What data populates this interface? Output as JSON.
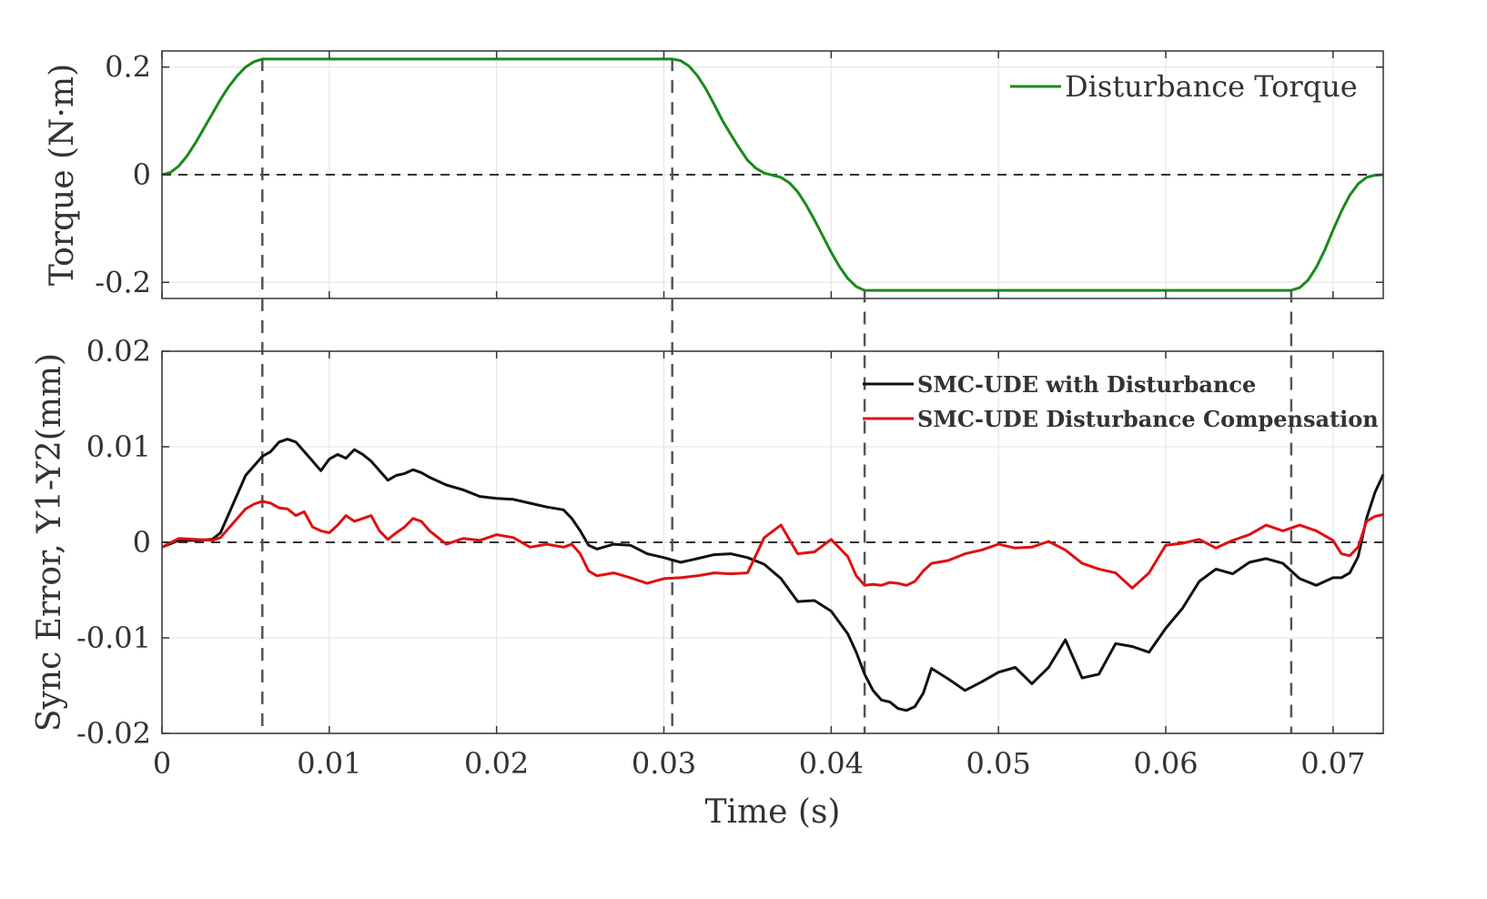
{
  "chart_data": [
    {
      "type": "line",
      "ylabel": "Torque (N·m)",
      "ylim": [
        -0.23,
        0.23
      ],
      "xlim": [
        0,
        0.073
      ],
      "yticks": [
        -0.2,
        0,
        0.2
      ],
      "ytick_labels": [
        "-0.2",
        "0",
        "0.2"
      ],
      "grid": true,
      "legend_position": "top-right",
      "series": [
        {
          "name": "Disturbance Torque",
          "color": "#1a8a1a",
          "x": [
            0,
            0.0005,
            0.001,
            0.0015,
            0.002,
            0.0025,
            0.003,
            0.0035,
            0.004,
            0.0045,
            0.005,
            0.0055,
            0.006,
            0.01,
            0.02,
            0.0305,
            0.031,
            0.0315,
            0.032,
            0.0325,
            0.033,
            0.0335,
            0.034,
            0.0345,
            0.035,
            0.0355,
            0.036,
            0.0365,
            0.037,
            0.0375,
            0.038,
            0.0385,
            0.039,
            0.0395,
            0.04,
            0.0405,
            0.041,
            0.0415,
            0.042,
            0.05,
            0.06,
            0.0675,
            0.068,
            0.0685,
            0.069,
            0.0695,
            0.07,
            0.0705,
            0.071,
            0.0715,
            0.072,
            0.0725,
            0.073
          ],
          "y": [
            0,
            0.004,
            0.016,
            0.035,
            0.059,
            0.086,
            0.113,
            0.14,
            0.164,
            0.184,
            0.2,
            0.21,
            0.215,
            0.215,
            0.215,
            0.215,
            0.212,
            0.202,
            0.184,
            0.16,
            0.131,
            0.101,
            0.075,
            0.05,
            0.027,
            0.012,
            0.003,
            -0.001,
            -0.005,
            -0.015,
            -0.032,
            -0.056,
            -0.084,
            -0.114,
            -0.144,
            -0.171,
            -0.193,
            -0.208,
            -0.215,
            -0.215,
            -0.215,
            -0.215,
            -0.21,
            -0.196,
            -0.172,
            -0.14,
            -0.103,
            -0.068,
            -0.038,
            -0.017,
            -0.005,
            -0.001,
            0
          ]
        }
      ],
      "reference_lines": {
        "horizontal_zero": true,
        "vertical_x": [
          0.006,
          0.0305
        ]
      }
    },
    {
      "type": "line",
      "xlabel": "Time (s)",
      "ylabel": "Sync Error, Y1-Y2(mm)",
      "ylim": [
        -0.02,
        0.02
      ],
      "xlim": [
        0,
        0.073
      ],
      "yticks": [
        -0.02,
        -0.01,
        0,
        0.01,
        0.02
      ],
      "ytick_labels": [
        "-0.02",
        "-0.01",
        "0",
        "0.01",
        "0.02"
      ],
      "xticks": [
        0,
        0.01,
        0.02,
        0.03,
        0.04,
        0.05,
        0.06,
        0.07
      ],
      "xtick_labels": [
        "0",
        "0.01",
        "0.02",
        "0.03",
        "0.04",
        "0.05",
        "0.06",
        "0.07"
      ],
      "grid": true,
      "legend_position": "top-right",
      "series": [
        {
          "name": "SMC-UDE with Disturbance",
          "color": "#111111",
          "x": [
            0,
            0.001,
            0.002,
            0.003,
            0.0035,
            0.004,
            0.0045,
            0.005,
            0.0055,
            0.006,
            0.0065,
            0.007,
            0.0075,
            0.008,
            0.0085,
            0.009,
            0.0095,
            0.01,
            0.0105,
            0.011,
            0.0115,
            0.012,
            0.0125,
            0.013,
            0.0135,
            0.014,
            0.0145,
            0.015,
            0.0155,
            0.016,
            0.017,
            0.018,
            0.019,
            0.02,
            0.021,
            0.022,
            0.023,
            0.024,
            0.0245,
            0.025,
            0.0255,
            0.026,
            0.027,
            0.028,
            0.029,
            0.03,
            0.031,
            0.032,
            0.033,
            0.034,
            0.035,
            0.036,
            0.037,
            0.038,
            0.039,
            0.04,
            0.041,
            0.0415,
            0.042,
            0.0425,
            0.043,
            0.0435,
            0.044,
            0.0445,
            0.045,
            0.0455,
            0.046,
            0.047,
            0.048,
            0.049,
            0.05,
            0.051,
            0.052,
            0.053,
            0.054,
            0.055,
            0.056,
            0.057,
            0.058,
            0.059,
            0.06,
            0.061,
            0.062,
            0.063,
            0.064,
            0.065,
            0.066,
            0.067,
            0.068,
            0.069,
            0.07,
            0.0705,
            0.071,
            0.0715,
            0.072,
            0.0725,
            0.073
          ],
          "y": [
            -0.0005,
            0.0002,
            0.0002,
            0.0003,
            0.001,
            0.003,
            0.005,
            0.007,
            0.008,
            0.009,
            0.0095,
            0.0105,
            0.0108,
            0.0105,
            0.0095,
            0.0085,
            0.0075,
            0.0087,
            0.0092,
            0.0088,
            0.0097,
            0.0092,
            0.0085,
            0.0075,
            0.0065,
            0.007,
            0.0072,
            0.0076,
            0.0073,
            0.0068,
            0.006,
            0.0055,
            0.0048,
            0.0046,
            0.0045,
            0.0041,
            0.0037,
            0.0034,
            0.0025,
            0.0012,
            -0.0003,
            -0.0007,
            -0.0002,
            -0.0003,
            -0.0012,
            -0.0016,
            -0.0021,
            -0.0017,
            -0.0013,
            -0.0012,
            -0.0016,
            -0.0023,
            -0.0038,
            -0.0062,
            -0.0061,
            -0.0072,
            -0.0096,
            -0.0115,
            -0.0138,
            -0.0155,
            -0.0165,
            -0.0167,
            -0.0174,
            -0.0176,
            -0.0172,
            -0.0158,
            -0.0132,
            -0.0143,
            -0.0155,
            -0.0146,
            -0.0136,
            -0.0131,
            -0.0148,
            -0.0131,
            -0.0102,
            -0.0142,
            -0.0138,
            -0.0106,
            -0.0109,
            -0.0115,
            -0.009,
            -0.0069,
            -0.0041,
            -0.0028,
            -0.0033,
            -0.0021,
            -0.0017,
            -0.0022,
            -0.0038,
            -0.0045,
            -0.0037,
            -0.0037,
            -0.0032,
            -0.0015,
            0.0025,
            0.0052,
            0.0071
          ]
        },
        {
          "name": "SMC-UDE Disturbance Compensation",
          "color": "#e01010",
          "x": [
            0,
            0.001,
            0.002,
            0.003,
            0.0035,
            0.004,
            0.0045,
            0.005,
            0.0055,
            0.006,
            0.0065,
            0.007,
            0.0075,
            0.008,
            0.0085,
            0.009,
            0.0095,
            0.01,
            0.0105,
            0.011,
            0.0115,
            0.012,
            0.0125,
            0.013,
            0.0135,
            0.014,
            0.0145,
            0.015,
            0.0155,
            0.016,
            0.017,
            0.018,
            0.019,
            0.02,
            0.021,
            0.022,
            0.023,
            0.024,
            0.0245,
            0.025,
            0.0255,
            0.026,
            0.027,
            0.028,
            0.029,
            0.03,
            0.031,
            0.032,
            0.033,
            0.034,
            0.035,
            0.036,
            0.037,
            0.038,
            0.039,
            0.04,
            0.041,
            0.0415,
            0.042,
            0.0425,
            0.043,
            0.0435,
            0.044,
            0.0445,
            0.045,
            0.0455,
            0.046,
            0.047,
            0.048,
            0.049,
            0.05,
            0.051,
            0.052,
            0.053,
            0.054,
            0.055,
            0.056,
            0.057,
            0.058,
            0.059,
            0.06,
            0.061,
            0.062,
            0.063,
            0.064,
            0.065,
            0.066,
            0.067,
            0.068,
            0.069,
            0.07,
            0.0705,
            0.071,
            0.0715,
            0.072,
            0.0725,
            0.073
          ],
          "y": [
            -0.0005,
            0.0004,
            0.0003,
            0.0002,
            0.0005,
            0.0015,
            0.0025,
            0.0035,
            0.004,
            0.0043,
            0.0041,
            0.0036,
            0.0035,
            0.0028,
            0.0032,
            0.0016,
            0.0012,
            0.001,
            0.0018,
            0.0028,
            0.0022,
            0.0025,
            0.0028,
            0.0012,
            0.0003,
            0.001,
            0.0016,
            0.0025,
            0.0022,
            0.0012,
            -0.0002,
            0.0004,
            0.0002,
            0.0008,
            0.0005,
            -0.0005,
            -0.0002,
            -0.0005,
            -0.0002,
            -0.0012,
            -0.003,
            -0.0035,
            -0.0032,
            -0.0037,
            -0.0043,
            -0.0038,
            -0.0037,
            -0.0035,
            -0.0032,
            -0.0033,
            -0.0032,
            0.0005,
            0.0018,
            -0.0012,
            -0.001,
            0.0003,
            -0.0015,
            -0.0035,
            -0.0045,
            -0.0044,
            -0.0045,
            -0.0042,
            -0.0043,
            -0.0045,
            -0.0041,
            -0.003,
            -0.0022,
            -0.0019,
            -0.0012,
            -0.0008,
            -0.0002,
            -0.0006,
            -0.0005,
            0.0001,
            -0.0008,
            -0.0022,
            -0.0028,
            -0.0032,
            -0.0048,
            -0.0032,
            -0.0003,
            -0.0001,
            0.0003,
            -0.0006,
            0.0002,
            0.0008,
            0.0018,
            0.0012,
            0.0018,
            0.0012,
            0.0002,
            -0.0012,
            -0.0014,
            -0.0005,
            0.0022,
            0.0027,
            0.0029
          ]
        }
      ],
      "reference_lines": {
        "horizontal_zero": true,
        "vertical_x": [
          0.006,
          0.0305,
          0.042,
          0.0675
        ]
      }
    }
  ]
}
